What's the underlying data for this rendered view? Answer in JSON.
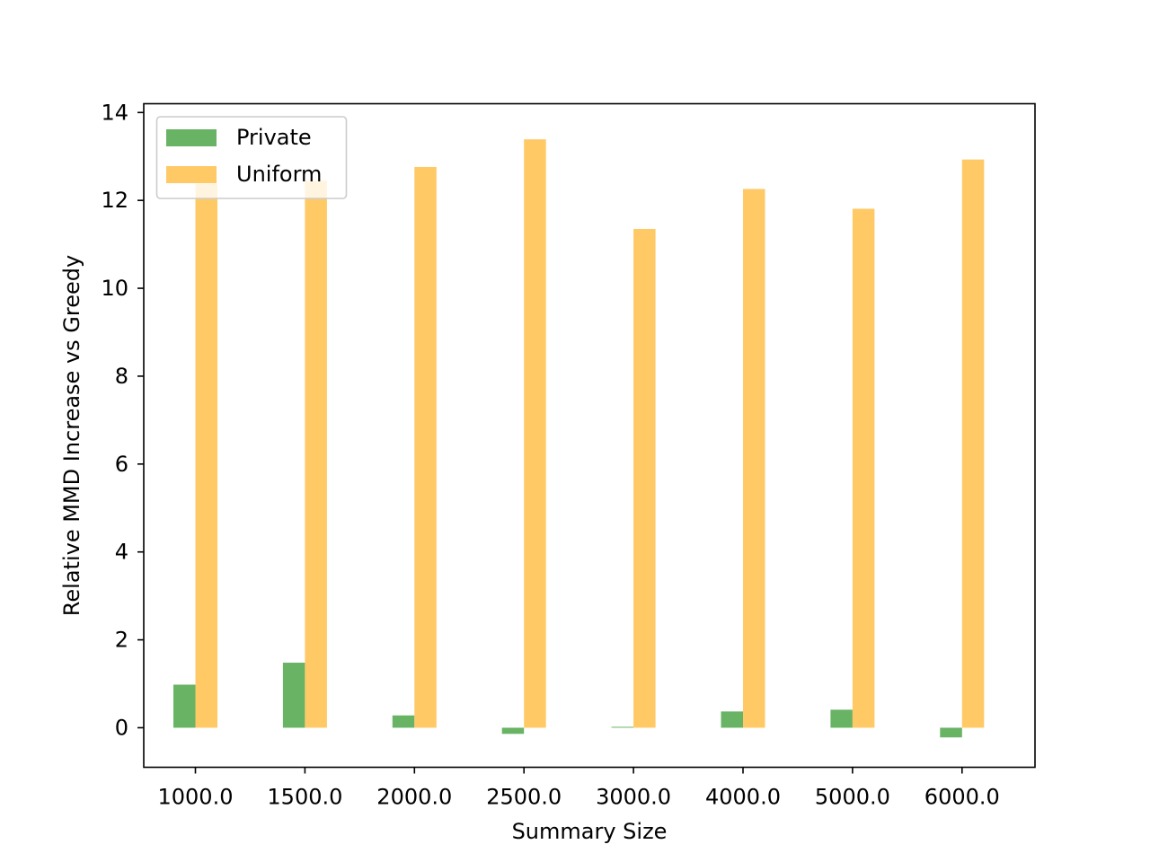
{
  "chart_data": {
    "type": "bar",
    "title": "",
    "xlabel": "Summary Size",
    "ylabel": "Relative MMD Increase vs Greedy",
    "categories": [
      "1000.0",
      "1500.0",
      "2000.0",
      "2500.0",
      "3000.0",
      "4000.0",
      "5000.0",
      "6000.0"
    ],
    "series": [
      {
        "name": "Private",
        "color": "#69b365",
        "values": [
          0.98,
          1.48,
          0.28,
          -0.14,
          0.02,
          0.37,
          0.41,
          -0.22
        ]
      },
      {
        "name": "Uniform",
        "color": "#ffc966",
        "values": [
          12.38,
          12.45,
          12.76,
          13.39,
          11.35,
          12.26,
          11.81,
          12.93
        ]
      }
    ],
    "ylim": [
      -0.9,
      14.2
    ],
    "yticks": [
      "0",
      "2",
      "4",
      "6",
      "8",
      "10",
      "12",
      "14"
    ],
    "legend": "top-left",
    "grid": false
  }
}
